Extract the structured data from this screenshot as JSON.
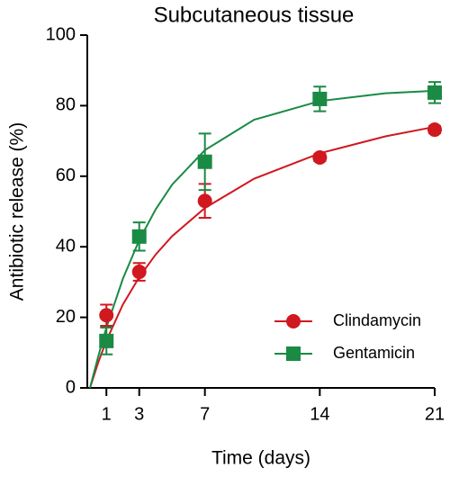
{
  "chart_data": {
    "type": "scatter",
    "title": "Subcutaneous tissue",
    "xlabel": "Time (days)",
    "ylabel": "Antibiotic release (%)",
    "xlim": [
      0,
      21
    ],
    "xticks": [
      1,
      3,
      7,
      14,
      21
    ],
    "ylim": [
      0,
      100
    ],
    "yticks": [
      0,
      20,
      40,
      60,
      80,
      100
    ],
    "legend": "lower right",
    "series": [
      {
        "name": "Clindamycin",
        "color": "#d0181e",
        "marker": "circle",
        "x": [
          1,
          3,
          7,
          14,
          21
        ],
        "values": [
          20.6,
          32.9,
          53,
          65.3,
          73.2
        ],
        "errors": [
          3,
          2.5,
          4.8,
          1,
          1
        ],
        "fit_x": [
          0,
          0.5,
          1,
          2,
          3,
          4,
          5,
          7,
          10,
          14,
          18,
          21
        ],
        "fit_values": [
          0,
          7.2,
          13.4,
          23.6,
          31.4,
          37.8,
          43.0,
          51.0,
          59.3,
          66.5,
          71.3,
          74.0
        ]
      },
      {
        "name": "Gentamicin",
        "color": "#1a8a44",
        "marker": "square",
        "x": [
          1,
          3,
          7,
          14,
          21
        ],
        "values": [
          13.3,
          42.9,
          64.1,
          81.9,
          83.7
        ],
        "errors": [
          3.8,
          4,
          8,
          3.5,
          3
        ],
        "fit_x": [
          0,
          0.5,
          1,
          2,
          3,
          4,
          5,
          7,
          10,
          14,
          18,
          21
        ],
        "fit_values": [
          0,
          8.9,
          17.1,
          30.9,
          41.9,
          50.6,
          57.6,
          67.4,
          76.0,
          81.3,
          83.5,
          84.2
        ]
      }
    ]
  }
}
